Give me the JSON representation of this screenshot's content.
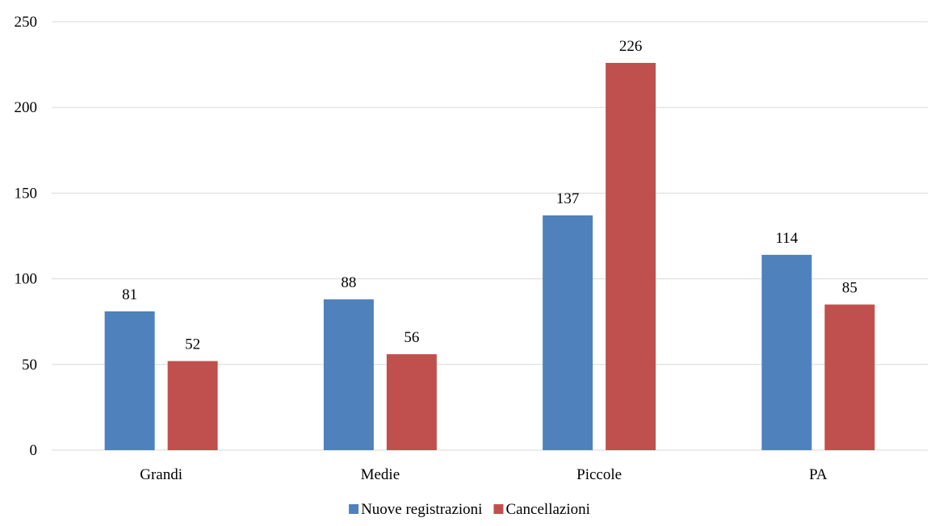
{
  "chart_data": {
    "type": "bar",
    "categories": [
      "Grandi",
      "Medie",
      "Piccole",
      "PA"
    ],
    "series": [
      {
        "name": "Nuove registrazioni",
        "values": [
          81,
          88,
          137,
          114
        ],
        "color": "#4f81bd"
      },
      {
        "name": "Cancellazioni",
        "values": [
          52,
          56,
          226,
          85
        ],
        "color": "#c0504d"
      }
    ],
    "ylim": [
      0,
      250
    ],
    "yticks": [
      0,
      50,
      100,
      150,
      200,
      250
    ],
    "grid": true,
    "legend_position": "bottom",
    "data_labels": true
  }
}
